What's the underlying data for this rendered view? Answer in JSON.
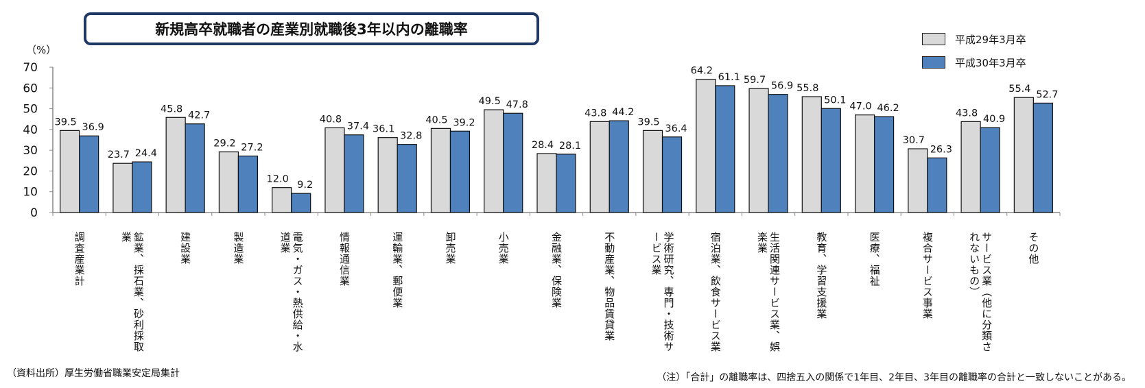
{
  "chart_data": {
    "type": "bar",
    "title": "新規高卒就職者の産業別就職後3年以内の離職率",
    "ylabel": "（%）",
    "xlabel": "",
    "ylim": [
      0,
      70
    ],
    "yticks": [
      0,
      10,
      20,
      30,
      40,
      50,
      60,
      70
    ],
    "grid": false,
    "legend_position": "top-right",
    "categories": [
      "調査産業計",
      "鉱業、採石業、砂利採取業",
      "建設業",
      "製造業",
      "電気・ガス・熱供給・水道業",
      "情報通信業",
      "運輸業、郵便業",
      "卸売業",
      "小売業",
      "金融業、保険業",
      "不動産業、物品賃貸業",
      "学術研究、専門・技術サービス業",
      "宿泊業、飲食サービス業",
      "生活関連サービス業、娯楽業",
      "教育、学習支援業",
      "医療、福祉",
      "複合サービス事業",
      "サービス業（他に分類されないもの）",
      "その他"
    ],
    "series": [
      {
        "name": "平成29年3月卒",
        "color": "#d9d9d9",
        "values": [
          39.5,
          23.7,
          45.8,
          29.2,
          12.0,
          40.8,
          36.1,
          40.5,
          49.5,
          28.4,
          43.8,
          39.5,
          64.2,
          59.7,
          55.8,
          47.0,
          30.7,
          43.8,
          55.4
        ]
      },
      {
        "name": "平成30年3月卒",
        "color": "#4f81bd",
        "values": [
          36.9,
          24.4,
          42.7,
          27.2,
          9.2,
          37.4,
          32.8,
          39.2,
          47.8,
          28.1,
          44.2,
          36.4,
          61.1,
          56.9,
          50.1,
          46.2,
          26.3,
          40.9,
          52.7
        ]
      }
    ]
  },
  "source": "（資料出所）厚生労働省職業安定局集計",
  "note": "（注）「合計」の離職率は、四捨五入の関係で1年目、2年目、3年目の離職率の合計と一致しないことがある。"
}
